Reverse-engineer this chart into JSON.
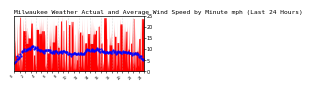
{
  "title": "Milwaukee Weather Actual and Average Wind Speed by Minute mph (Last 24 Hours)",
  "title_fontsize": 4.5,
  "background_color": "#ffffff",
  "plot_bg_color": "#ffffff",
  "ylim": [
    0,
    25
  ],
  "yticks": [
    0,
    5,
    10,
    15,
    20,
    25
  ],
  "actual_color": "#ff0000",
  "average_color": "#0000ff",
  "grid_color": "#b0b0b0",
  "n_points": 1440,
  "seed": 42,
  "avg_max": 12,
  "actual_scale": 8,
  "peak_boost": 18
}
